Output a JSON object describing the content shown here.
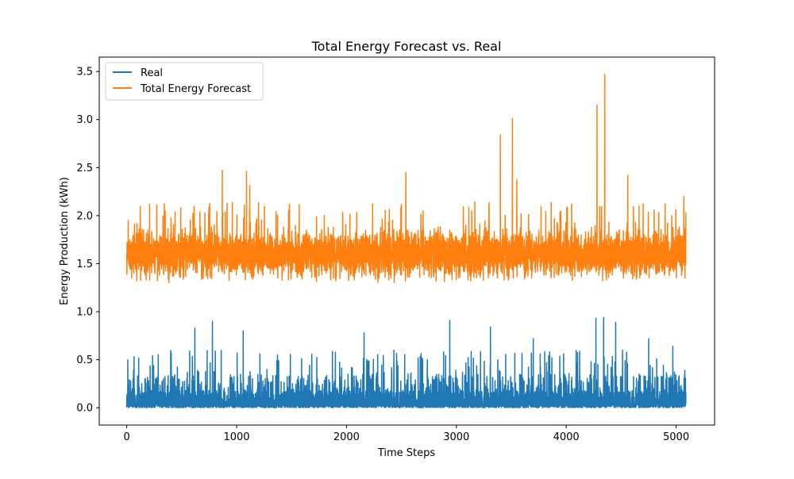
{
  "chart_data": {
    "type": "line",
    "title": "Total Energy Forecast vs. Real",
    "xlabel": "Time Steps",
    "ylabel": "Energy Production (kWh)",
    "xlim": [
      -250,
      5350
    ],
    "ylim": [
      -0.18,
      3.65
    ],
    "xticks": [
      0,
      1000,
      2000,
      3000,
      4000,
      5000
    ],
    "yticks": [
      0.0,
      0.5,
      1.0,
      1.5,
      2.0,
      2.5,
      3.0,
      3.5
    ],
    "xtick_labels": [
      "0",
      "1000",
      "2000",
      "3000",
      "4000",
      "5000"
    ],
    "ytick_labels": [
      "0.0",
      "0.5",
      "1.0",
      "1.5",
      "2.0",
      "2.5",
      "3.0",
      "3.5"
    ],
    "grid": false,
    "legend_position": "top-left",
    "n_points": 5090,
    "series": [
      {
        "name": "Real",
        "color": "#1f77b4",
        "baseline": 0.0,
        "typical_range": [
          0.0,
          0.3
        ],
        "peaks": [
          [
            620,
            0.83
          ],
          [
            780,
            0.9
          ],
          [
            1060,
            0.8
          ],
          [
            2160,
            0.78
          ],
          [
            2940,
            0.91
          ],
          [
            3310,
            0.84
          ],
          [
            3700,
            0.72
          ],
          [
            4270,
            0.93
          ],
          [
            4340,
            0.94
          ],
          [
            4450,
            0.89
          ],
          [
            4750,
            0.72
          ],
          [
            4970,
            0.64
          ]
        ]
      },
      {
        "name": "Total Energy Forecast",
        "color": "#ff7f0e",
        "baseline": 1.6,
        "typical_range": [
          1.35,
          1.85
        ],
        "peaks": [
          [
            870,
            2.47
          ],
          [
            1090,
            2.46
          ],
          [
            1120,
            2.31
          ],
          [
            2540,
            2.45
          ],
          [
            3400,
            2.84
          ],
          [
            3510,
            3.01
          ],
          [
            3550,
            2.37
          ],
          [
            4280,
            3.15
          ],
          [
            4350,
            3.47
          ],
          [
            4560,
            2.42
          ],
          [
            5070,
            2.2
          ]
        ]
      }
    ]
  }
}
